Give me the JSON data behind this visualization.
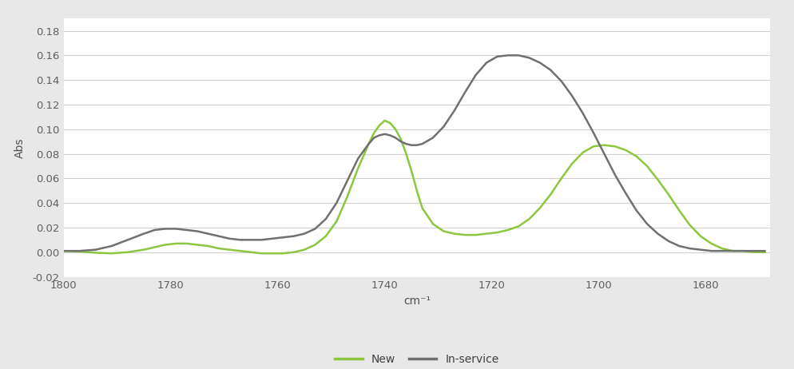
{
  "title": "",
  "xlabel": "cm⁻¹",
  "ylabel": "Abs",
  "xlim": [
    1800,
    1668
  ],
  "ylim": [
    -0.02,
    0.19
  ],
  "yticks": [
    -0.02,
    0.0,
    0.02,
    0.04,
    0.06,
    0.08,
    0.1,
    0.12,
    0.14,
    0.16,
    0.18
  ],
  "xticks": [
    1800,
    1780,
    1760,
    1740,
    1720,
    1700,
    1680
  ],
  "background_color": "#e8e8e8",
  "plot_bg_color": "#ffffff",
  "grid_color": "#d0d0d0",
  "new_color": "#8dc63f",
  "inservice_color": "#707070",
  "legend_labels": [
    "New",
    "In-service"
  ],
  "new_data_x": [
    1800,
    1797,
    1794,
    1791,
    1788,
    1785,
    1783,
    1781,
    1779,
    1777,
    1775,
    1773,
    1771,
    1769,
    1767,
    1765,
    1763,
    1761,
    1759,
    1757,
    1755,
    1753,
    1751,
    1749,
    1747,
    1745,
    1743,
    1742,
    1741,
    1740,
    1739,
    1738,
    1737,
    1736,
    1735,
    1734,
    1733,
    1731,
    1729,
    1727,
    1725,
    1723,
    1721,
    1719,
    1717,
    1715,
    1713,
    1711,
    1709,
    1707,
    1705,
    1703,
    1701,
    1699,
    1697,
    1695,
    1693,
    1691,
    1689,
    1687,
    1685,
    1683,
    1681,
    1679,
    1677,
    1675,
    1673,
    1671,
    1669
  ],
  "new_data_y": [
    0.001,
    0.0005,
    -0.0005,
    -0.001,
    0.0,
    0.002,
    0.004,
    0.006,
    0.007,
    0.007,
    0.006,
    0.005,
    0.003,
    0.002,
    0.001,
    0.0,
    -0.001,
    -0.001,
    -0.001,
    0.0,
    0.002,
    0.006,
    0.013,
    0.025,
    0.045,
    0.068,
    0.088,
    0.097,
    0.103,
    0.107,
    0.105,
    0.1,
    0.092,
    0.08,
    0.066,
    0.05,
    0.036,
    0.023,
    0.017,
    0.015,
    0.014,
    0.014,
    0.015,
    0.016,
    0.018,
    0.021,
    0.027,
    0.036,
    0.047,
    0.06,
    0.072,
    0.081,
    0.086,
    0.087,
    0.086,
    0.083,
    0.078,
    0.07,
    0.059,
    0.047,
    0.034,
    0.022,
    0.013,
    0.007,
    0.003,
    0.001,
    0.001,
    0.0,
    0.0
  ],
  "inservice_data_x": [
    1800,
    1797,
    1794,
    1791,
    1788,
    1785,
    1783,
    1781,
    1779,
    1777,
    1775,
    1773,
    1771,
    1769,
    1767,
    1765,
    1763,
    1761,
    1759,
    1757,
    1755,
    1753,
    1751,
    1749,
    1747,
    1745,
    1743,
    1742,
    1741,
    1740,
    1739,
    1738,
    1737,
    1736,
    1735,
    1734,
    1733,
    1731,
    1729,
    1727,
    1725,
    1723,
    1721,
    1719,
    1717,
    1715,
    1713,
    1711,
    1709,
    1707,
    1705,
    1703,
    1701,
    1699,
    1697,
    1695,
    1693,
    1691,
    1689,
    1687,
    1685,
    1683,
    1681,
    1679,
    1677,
    1675,
    1673,
    1671,
    1669
  ],
  "inservice_data_y": [
    0.001,
    0.001,
    0.002,
    0.005,
    0.01,
    0.015,
    0.018,
    0.019,
    0.019,
    0.018,
    0.017,
    0.015,
    0.013,
    0.011,
    0.01,
    0.01,
    0.01,
    0.011,
    0.012,
    0.013,
    0.015,
    0.019,
    0.027,
    0.04,
    0.058,
    0.076,
    0.088,
    0.093,
    0.095,
    0.096,
    0.095,
    0.093,
    0.09,
    0.088,
    0.087,
    0.087,
    0.088,
    0.093,
    0.102,
    0.115,
    0.13,
    0.144,
    0.154,
    0.159,
    0.16,
    0.16,
    0.158,
    0.154,
    0.148,
    0.139,
    0.127,
    0.113,
    0.097,
    0.08,
    0.063,
    0.048,
    0.034,
    0.023,
    0.015,
    0.009,
    0.005,
    0.003,
    0.002,
    0.001,
    0.001,
    0.001,
    0.001,
    0.001,
    0.001
  ]
}
